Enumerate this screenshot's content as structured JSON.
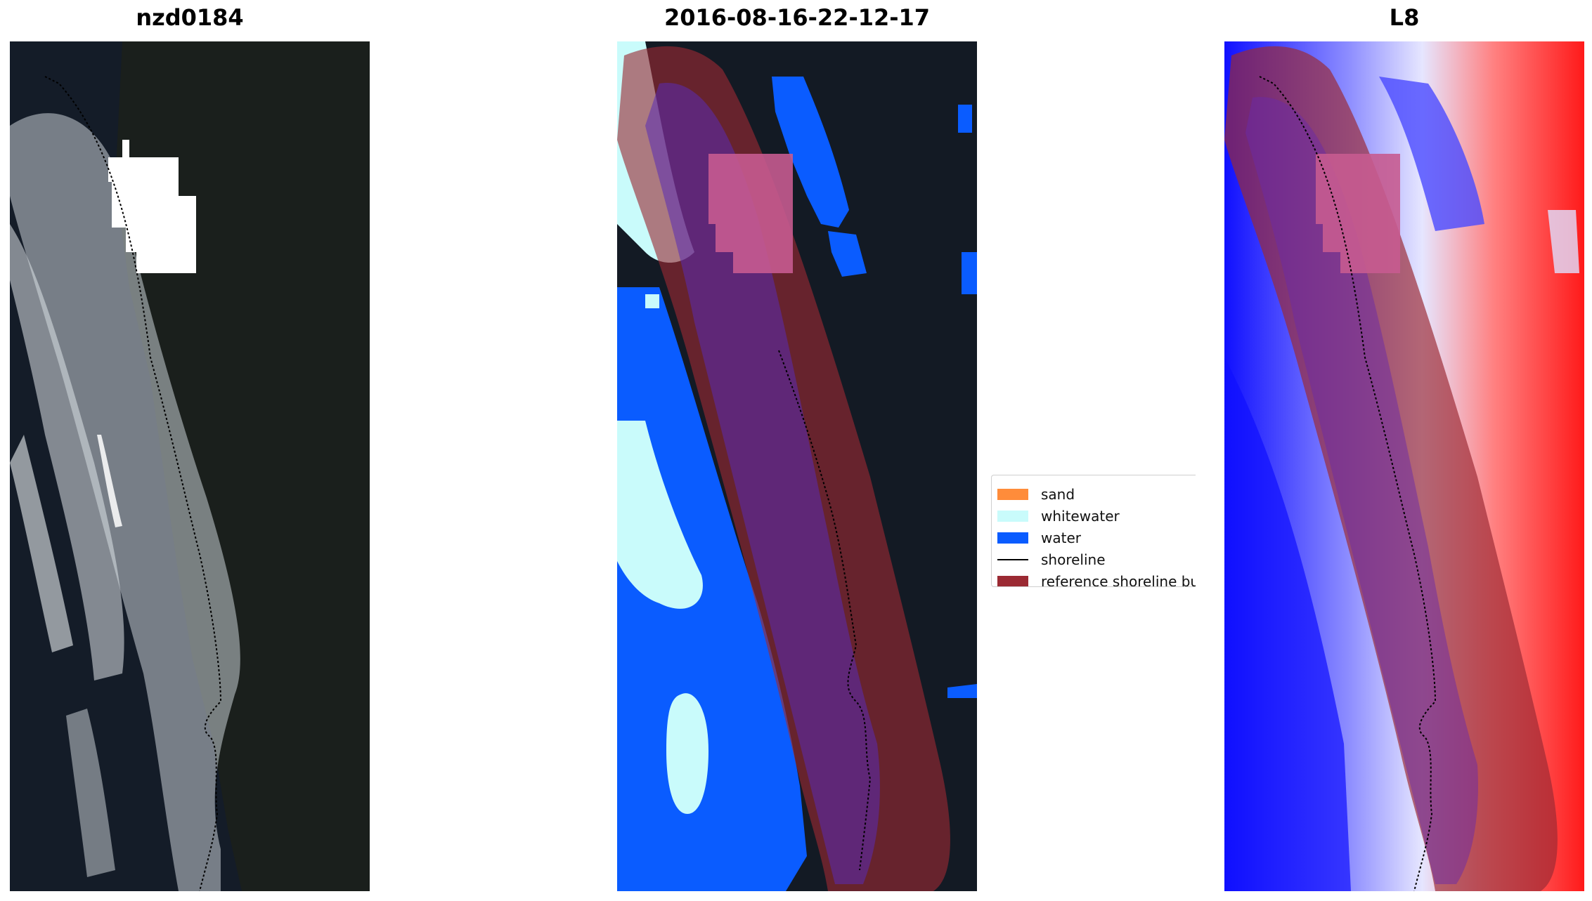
{
  "panels": [
    {
      "title": "nzd0184"
    },
    {
      "title": "2016-08-16-22-12-17"
    },
    {
      "title": "L8"
    }
  ],
  "legend": {
    "items": [
      {
        "label": "sand",
        "kind": "patch",
        "color": "#ff8c3a"
      },
      {
        "label": "whitewater",
        "kind": "patch",
        "color": "#c9fbfb"
      },
      {
        "label": "water",
        "kind": "patch",
        "color": "#0a5cff"
      },
      {
        "label": "shoreline",
        "kind": "line",
        "color": "#000000"
      },
      {
        "label": "reference shoreline buffer",
        "kind": "patch",
        "color": "#9b2a33"
      }
    ]
  },
  "colors": {
    "ocean_dark": "#131a24",
    "buffer": "#9b2a33",
    "water": "#0a5cff",
    "whitewater": "#c9fbfb",
    "cloud": "#ffffff",
    "index_low": "#1010ff",
    "index_high": "#ff1a1a"
  }
}
